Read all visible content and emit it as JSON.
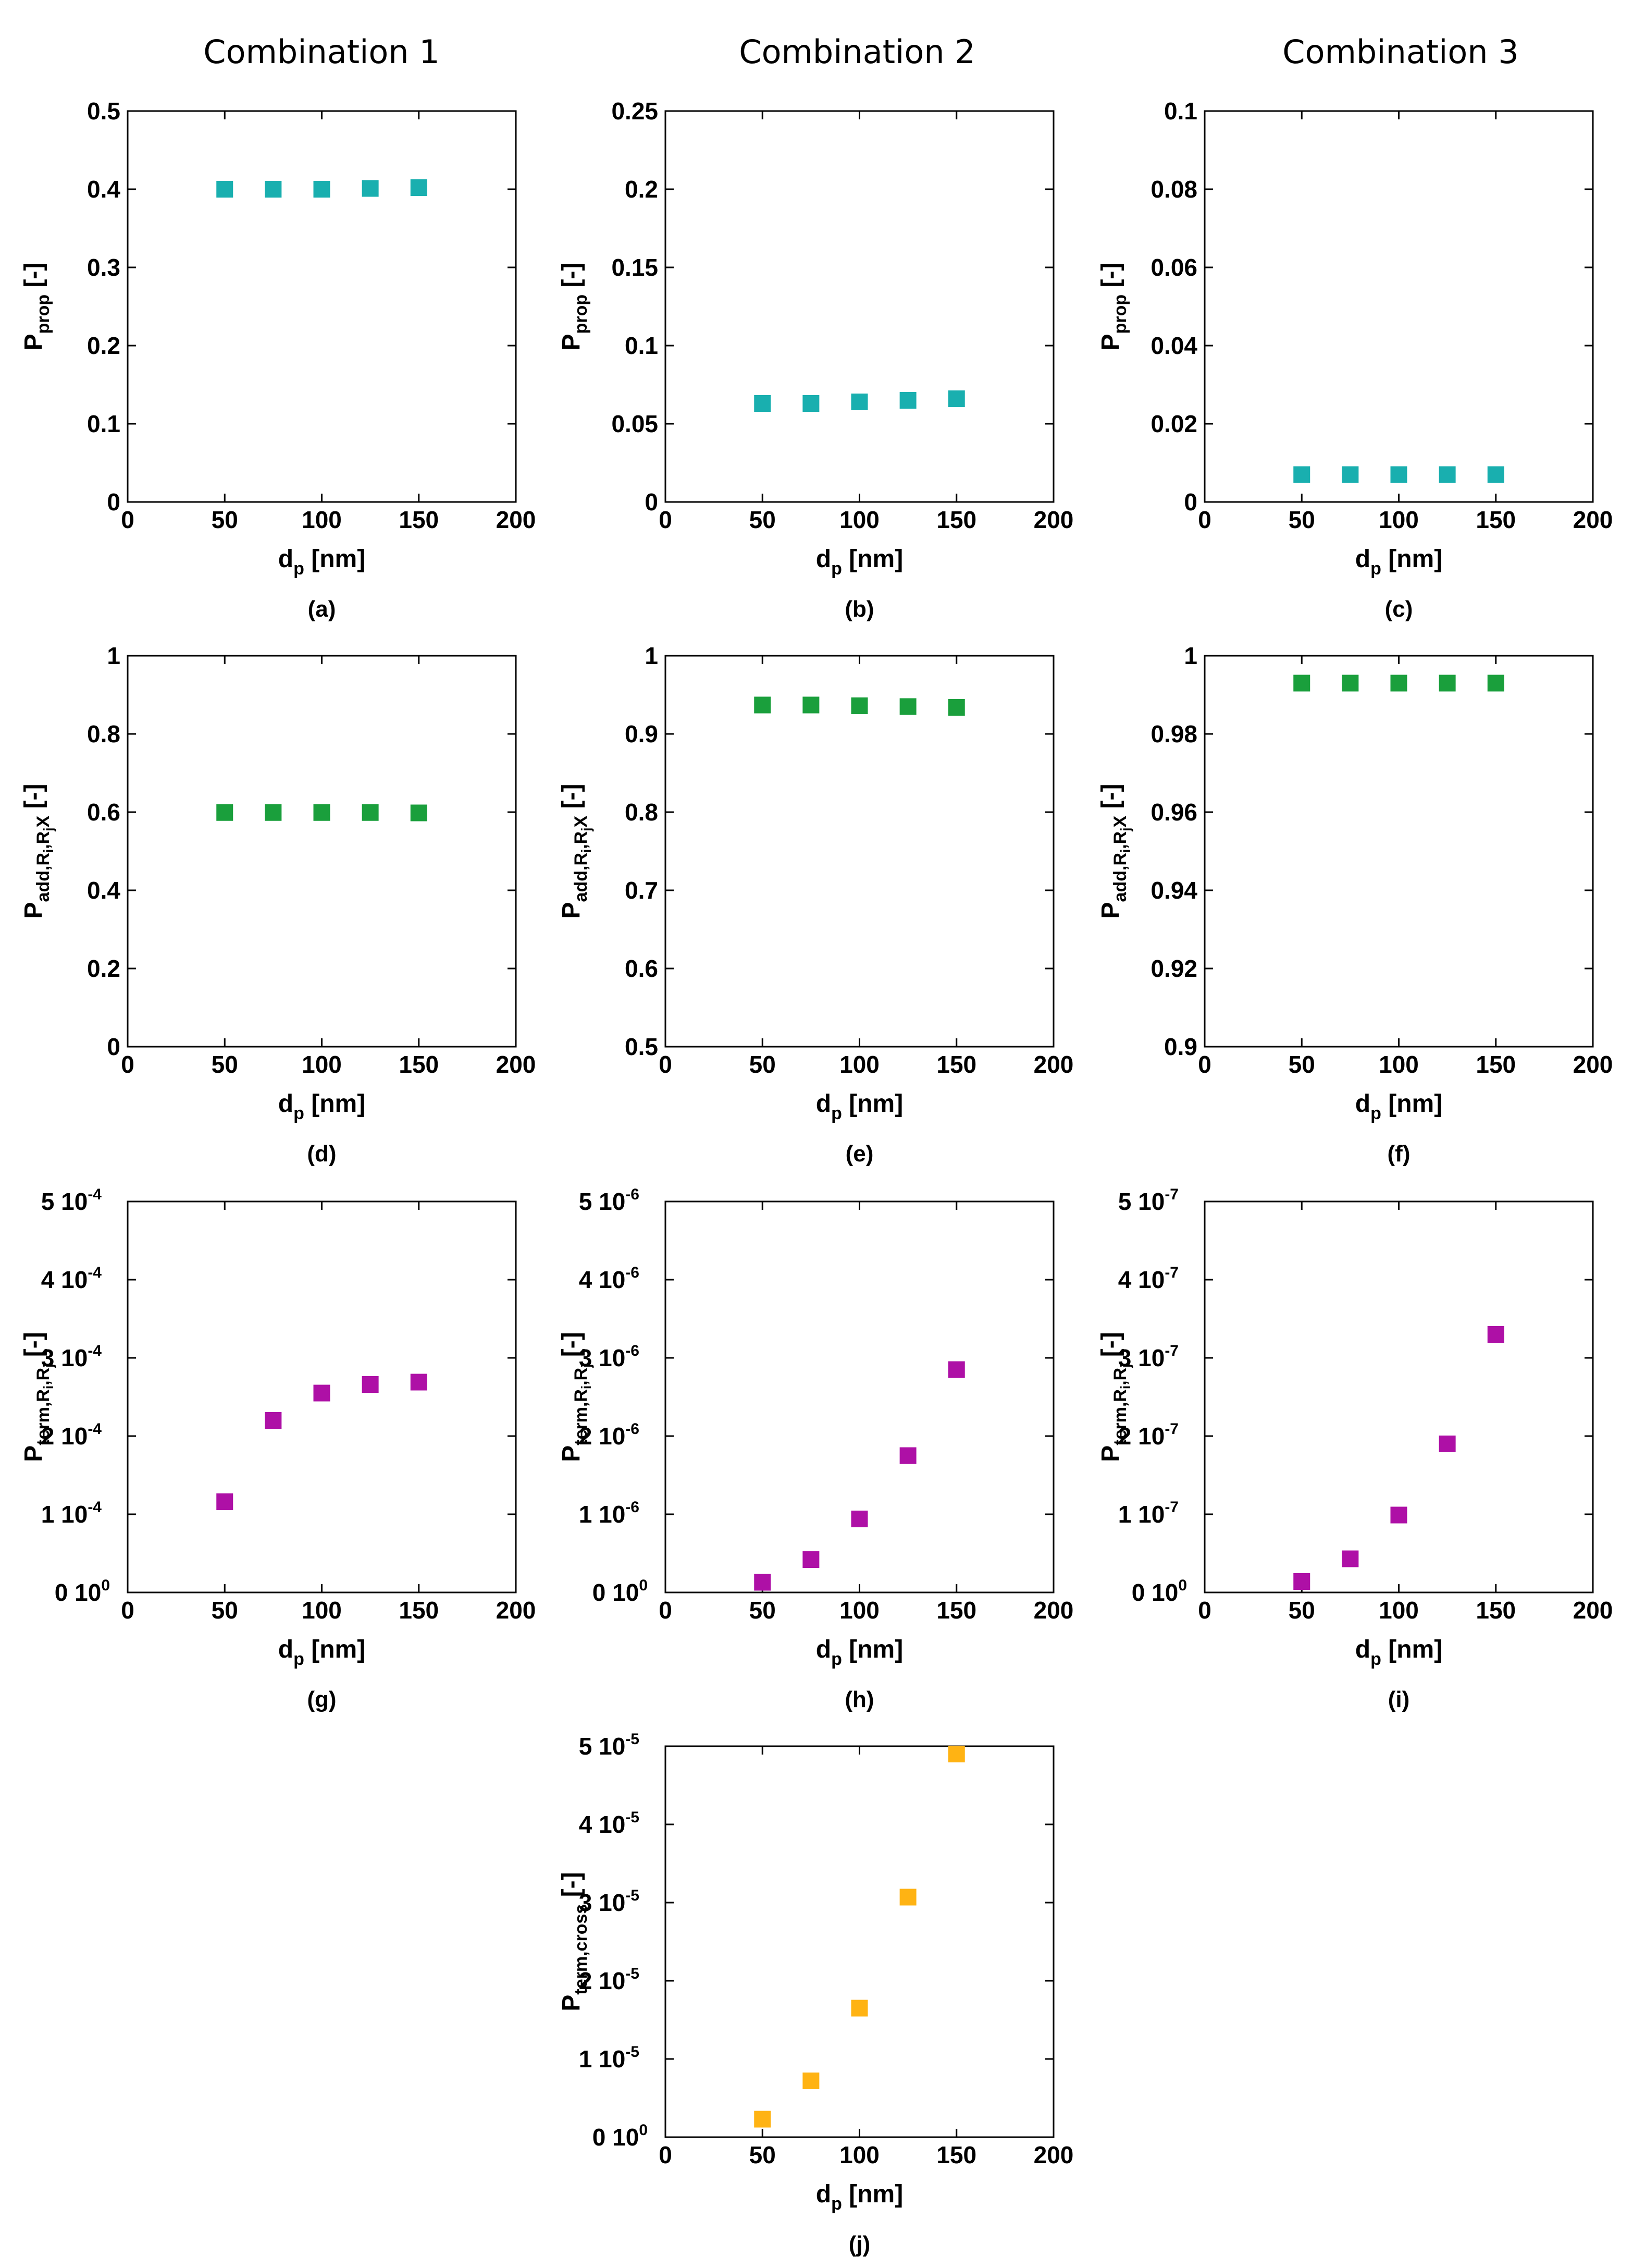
{
  "column_titles": [
    "Combination 1",
    "Combination 2",
    "Combination 3"
  ],
  "colors": {
    "teal": "#19AFAF",
    "green": "#1A9F3C",
    "magenta": "#AE10A6",
    "orange": "#FFB313"
  },
  "marker": "square",
  "chart_data": [
    {
      "panel_label": "(a)",
      "type": "scatter",
      "color_key": "teal",
      "xlabel": {
        "main": "d",
        "sub": "p",
        "rest": " [nm]"
      },
      "ylabel": {
        "main": "P",
        "sub": "prop",
        "rest": " [-]"
      },
      "xlim": [
        0,
        200
      ],
      "ylim": [
        0,
        0.5
      ],
      "xticks": [
        "0",
        "50",
        "100",
        "150",
        "200"
      ],
      "yticks": [
        {
          "v": 0,
          "label": "0"
        },
        {
          "v": 0.1,
          "label": "0.1"
        },
        {
          "v": 0.2,
          "label": "0.2"
        },
        {
          "v": 0.3,
          "label": "0.3"
        },
        {
          "v": 0.4,
          "label": "0.4"
        },
        {
          "v": 0.5,
          "label": "0.5"
        }
      ],
      "x": [
        50,
        75,
        100,
        125,
        150
      ],
      "y": [
        0.4,
        0.4,
        0.4,
        0.401,
        0.402
      ]
    },
    {
      "panel_label": "(b)",
      "type": "scatter",
      "color_key": "teal",
      "xlabel": {
        "main": "d",
        "sub": "p",
        "rest": " [nm]"
      },
      "ylabel": {
        "main": "P",
        "sub": "prop",
        "rest": " [-]"
      },
      "xlim": [
        0,
        200
      ],
      "ylim": [
        0,
        0.25
      ],
      "xticks": [
        "0",
        "50",
        "100",
        "150",
        "200"
      ],
      "yticks": [
        {
          "v": 0,
          "label": "0"
        },
        {
          "v": 0.05,
          "label": "0.05"
        },
        {
          "v": 0.1,
          "label": "0.1"
        },
        {
          "v": 0.15,
          "label": "0.15"
        },
        {
          "v": 0.2,
          "label": "0.2"
        },
        {
          "v": 0.25,
          "label": "0.25"
        }
      ],
      "x": [
        50,
        75,
        100,
        125,
        150
      ],
      "y": [
        0.063,
        0.063,
        0.064,
        0.065,
        0.066
      ]
    },
    {
      "panel_label": "(c)",
      "type": "scatter",
      "color_key": "teal",
      "xlabel": {
        "main": "d",
        "sub": "p",
        "rest": " [nm]"
      },
      "ylabel": {
        "main": "P",
        "sub": "prop",
        "rest": " [-]"
      },
      "xlim": [
        0,
        200
      ],
      "ylim": [
        0,
        0.1
      ],
      "xticks": [
        "0",
        "50",
        "100",
        "150",
        "200"
      ],
      "yticks": [
        {
          "v": 0,
          "label": "0"
        },
        {
          "v": 0.02,
          "label": "0.02"
        },
        {
          "v": 0.04,
          "label": "0.04"
        },
        {
          "v": 0.06,
          "label": "0.06"
        },
        {
          "v": 0.08,
          "label": "0.08"
        },
        {
          "v": 0.1,
          "label": "0.1"
        }
      ],
      "x": [
        50,
        75,
        100,
        125,
        150
      ],
      "y": [
        0.007,
        0.007,
        0.007,
        0.007,
        0.007
      ]
    },
    {
      "panel_label": "(d)",
      "type": "scatter",
      "color_key": "green",
      "xlabel": {
        "main": "d",
        "sub": "p",
        "rest": " [nm]"
      },
      "ylabel": {
        "main": "P",
        "sub": "add,R",
        "subsub": "i",
        "sub2": ",R",
        "subsub2": "j",
        "sub3": "X",
        "rest": " [-]"
      },
      "xlim": [
        0,
        200
      ],
      "ylim": [
        0,
        1
      ],
      "xticks": [
        "0",
        "50",
        "100",
        "150",
        "200"
      ],
      "yticks": [
        {
          "v": 0,
          "label": "0"
        },
        {
          "v": 0.2,
          "label": "0.2"
        },
        {
          "v": 0.4,
          "label": "0.4"
        },
        {
          "v": 0.6,
          "label": "0.6"
        },
        {
          "v": 0.8,
          "label": "0.8"
        },
        {
          "v": 1,
          "label": "1"
        }
      ],
      "x": [
        50,
        75,
        100,
        125,
        150
      ],
      "y": [
        0.599,
        0.599,
        0.599,
        0.599,
        0.598
      ]
    },
    {
      "panel_label": "(e)",
      "type": "scatter",
      "color_key": "green",
      "xlabel": {
        "main": "d",
        "sub": "p",
        "rest": " [nm]"
      },
      "ylabel": {
        "main": "P",
        "sub": "add,R",
        "subsub": "i",
        "sub2": ",R",
        "subsub2": "j",
        "sub3": "X",
        "rest": " [-]"
      },
      "xlim": [
        0,
        200
      ],
      "ylim": [
        0.5,
        1
      ],
      "xticks": [
        "0",
        "50",
        "100",
        "150",
        "200"
      ],
      "yticks": [
        {
          "v": 0.5,
          "label": "0.5"
        },
        {
          "v": 0.6,
          "label": "0.6"
        },
        {
          "v": 0.7,
          "label": "0.7"
        },
        {
          "v": 0.8,
          "label": "0.8"
        },
        {
          "v": 0.9,
          "label": "0.9"
        },
        {
          "v": 1,
          "label": "1"
        }
      ],
      "x": [
        50,
        75,
        100,
        125,
        150
      ],
      "y": [
        0.937,
        0.937,
        0.936,
        0.935,
        0.934
      ]
    },
    {
      "panel_label": "(f)",
      "type": "scatter",
      "color_key": "green",
      "xlabel": {
        "main": "d",
        "sub": "p",
        "rest": " [nm]"
      },
      "ylabel": {
        "main": "P",
        "sub": "add,R",
        "subsub": "i",
        "sub2": ",R",
        "subsub2": "j",
        "sub3": "X",
        "rest": " [-]"
      },
      "xlim": [
        0,
        200
      ],
      "ylim": [
        0.9,
        1
      ],
      "xticks": [
        "0",
        "50",
        "100",
        "150",
        "200"
      ],
      "yticks": [
        {
          "v": 0.9,
          "label": "0.9"
        },
        {
          "v": 0.92,
          "label": "0.92"
        },
        {
          "v": 0.94,
          "label": "0.94"
        },
        {
          "v": 0.96,
          "label": "0.96"
        },
        {
          "v": 0.98,
          "label": "0.98"
        },
        {
          "v": 1,
          "label": "1"
        }
      ],
      "x": [
        50,
        75,
        100,
        125,
        150
      ],
      "y": [
        0.993,
        0.993,
        0.993,
        0.993,
        0.993
      ]
    },
    {
      "panel_label": "(g)",
      "type": "scatter",
      "color_key": "magenta",
      "xlabel": {
        "main": "d",
        "sub": "p",
        "rest": " [nm]"
      },
      "ylabel": {
        "main": "P",
        "sub": "term,R",
        "subsub": "i",
        "sub2": ",R",
        "subsub2": "j",
        "rest": " [-]"
      },
      "xlim": [
        0,
        200
      ],
      "ylim": [
        0,
        0.0005
      ],
      "xticks": [
        "0",
        "50",
        "100",
        "150",
        "200"
      ],
      "yticks": [
        {
          "v": 0,
          "label": "0 10",
          "exp": "0"
        },
        {
          "v": 0.0001,
          "label": "1 10",
          "exp": "-4"
        },
        {
          "v": 0.0002,
          "label": "2 10",
          "exp": "-4"
        },
        {
          "v": 0.0003,
          "label": "3 10",
          "exp": "-4"
        },
        {
          "v": 0.0004,
          "label": "4 10",
          "exp": "-4"
        },
        {
          "v": 0.0005,
          "label": "5 10",
          "exp": "-4"
        }
      ],
      "x": [
        50,
        75,
        100,
        125,
        150
      ],
      "y": [
        0.000116,
        0.00022,
        0.000255,
        0.000266,
        0.000269
      ]
    },
    {
      "panel_label": "(h)",
      "type": "scatter",
      "color_key": "magenta",
      "xlabel": {
        "main": "d",
        "sub": "p",
        "rest": " [nm]"
      },
      "ylabel": {
        "main": "P",
        "sub": "term,R",
        "subsub": "i",
        "sub2": ",R",
        "subsub2": "j",
        "rest": " [-]"
      },
      "xlim": [
        0,
        200
      ],
      "ylim": [
        0,
        5e-06
      ],
      "xticks": [
        "0",
        "50",
        "100",
        "150",
        "200"
      ],
      "yticks": [
        {
          "v": 0,
          "label": "0 10",
          "exp": "0"
        },
        {
          "v": 1e-06,
          "label": "1 10",
          "exp": "-6"
        },
        {
          "v": 2e-06,
          "label": "2 10",
          "exp": "-6"
        },
        {
          "v": 3e-06,
          "label": "3 10",
          "exp": "-6"
        },
        {
          "v": 4e-06,
          "label": "4 10",
          "exp": "-6"
        },
        {
          "v": 5e-06,
          "label": "5 10",
          "exp": "-6"
        }
      ],
      "x": [
        50,
        75,
        100,
        125,
        150
      ],
      "y": [
        1.3e-07,
        4.2e-07,
        9.4e-07,
        1.75e-06,
        2.85e-06
      ]
    },
    {
      "panel_label": "(i)",
      "type": "scatter",
      "color_key": "magenta",
      "xlabel": {
        "main": "d",
        "sub": "p",
        "rest": " [nm]"
      },
      "ylabel": {
        "main": "P",
        "sub": "term,R",
        "subsub": "i",
        "sub2": ",R",
        "subsub2": "j",
        "rest": " [-]"
      },
      "xlim": [
        0,
        200
      ],
      "ylim": [
        0,
        5e-07
      ],
      "xticks": [
        "0",
        "50",
        "100",
        "150",
        "200"
      ],
      "yticks": [
        {
          "v": 0,
          "label": "0 10",
          "exp": "0"
        },
        {
          "v": 1e-07,
          "label": "1 10",
          "exp": "-7"
        },
        {
          "v": 2e-07,
          "label": "2 10",
          "exp": "-7"
        },
        {
          "v": 3e-07,
          "label": "3 10",
          "exp": "-7"
        },
        {
          "v": 4e-07,
          "label": "4 10",
          "exp": "-7"
        },
        {
          "v": 5e-07,
          "label": "5 10",
          "exp": "-7"
        }
      ],
      "x": [
        50,
        75,
        100,
        125,
        150
      ],
      "y": [
        1.4e-08,
        4.3e-08,
        9.9e-08,
        1.9e-07,
        3.3e-07
      ]
    },
    {
      "panel_label": "(j)",
      "type": "scatter",
      "color_key": "orange",
      "xlabel": {
        "main": "d",
        "sub": "p",
        "rest": " [nm]"
      },
      "ylabel": {
        "main": "P",
        "sub": "term,cross",
        "rest": " [-]"
      },
      "xlim": [
        0,
        200
      ],
      "ylim": [
        0,
        5e-05
      ],
      "xticks": [
        "0",
        "50",
        "100",
        "150",
        "200"
      ],
      "yticks": [
        {
          "v": 0,
          "label": "0 10",
          "exp": "0"
        },
        {
          "v": 1e-05,
          "label": "1 10",
          "exp": "-5"
        },
        {
          "v": 2e-05,
          "label": "2 10",
          "exp": "-5"
        },
        {
          "v": 3e-05,
          "label": "3 10",
          "exp": "-5"
        },
        {
          "v": 4e-05,
          "label": "4 10",
          "exp": "-5"
        },
        {
          "v": 5e-05,
          "label": "5 10",
          "exp": "-5"
        }
      ],
      "x": [
        50,
        75,
        100,
        125,
        150
      ],
      "y": [
        2.3e-06,
        7.2e-06,
        1.65e-05,
        3.07e-05,
        4.9e-05
      ]
    }
  ]
}
